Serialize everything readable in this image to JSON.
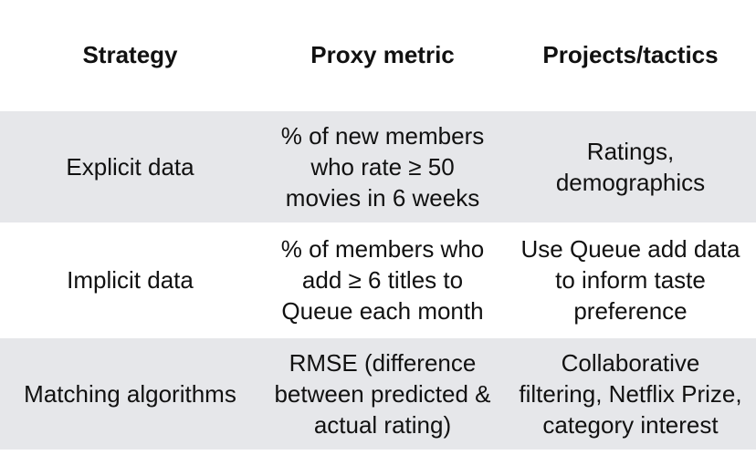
{
  "headers": {
    "strategy": "Strategy",
    "proxy_metric": "Proxy metric",
    "projects": "Projects/tactics"
  },
  "rows": [
    {
      "strategy": "Explicit data",
      "metric": [
        "% of new members",
        "who rate ≥ 50",
        "movies in 6 weeks"
      ],
      "projects": [
        "Ratings,",
        "demographics"
      ],
      "shaded": true
    },
    {
      "strategy": "Implicit data",
      "metric": [
        "% of members who",
        "add ≥ 6 titles to",
        "Queue each month"
      ],
      "projects": [
        "Use Queue add data",
        "to inform taste",
        "preference"
      ],
      "shaded": false
    },
    {
      "strategy": "Matching algorithms",
      "metric": [
        "RMSE (difference",
        "between predicted &",
        "actual rating)"
      ],
      "projects": [
        "Collaborative",
        "filtering, Netflix Prize,",
        "category interest"
      ],
      "shaded": true
    }
  ]
}
